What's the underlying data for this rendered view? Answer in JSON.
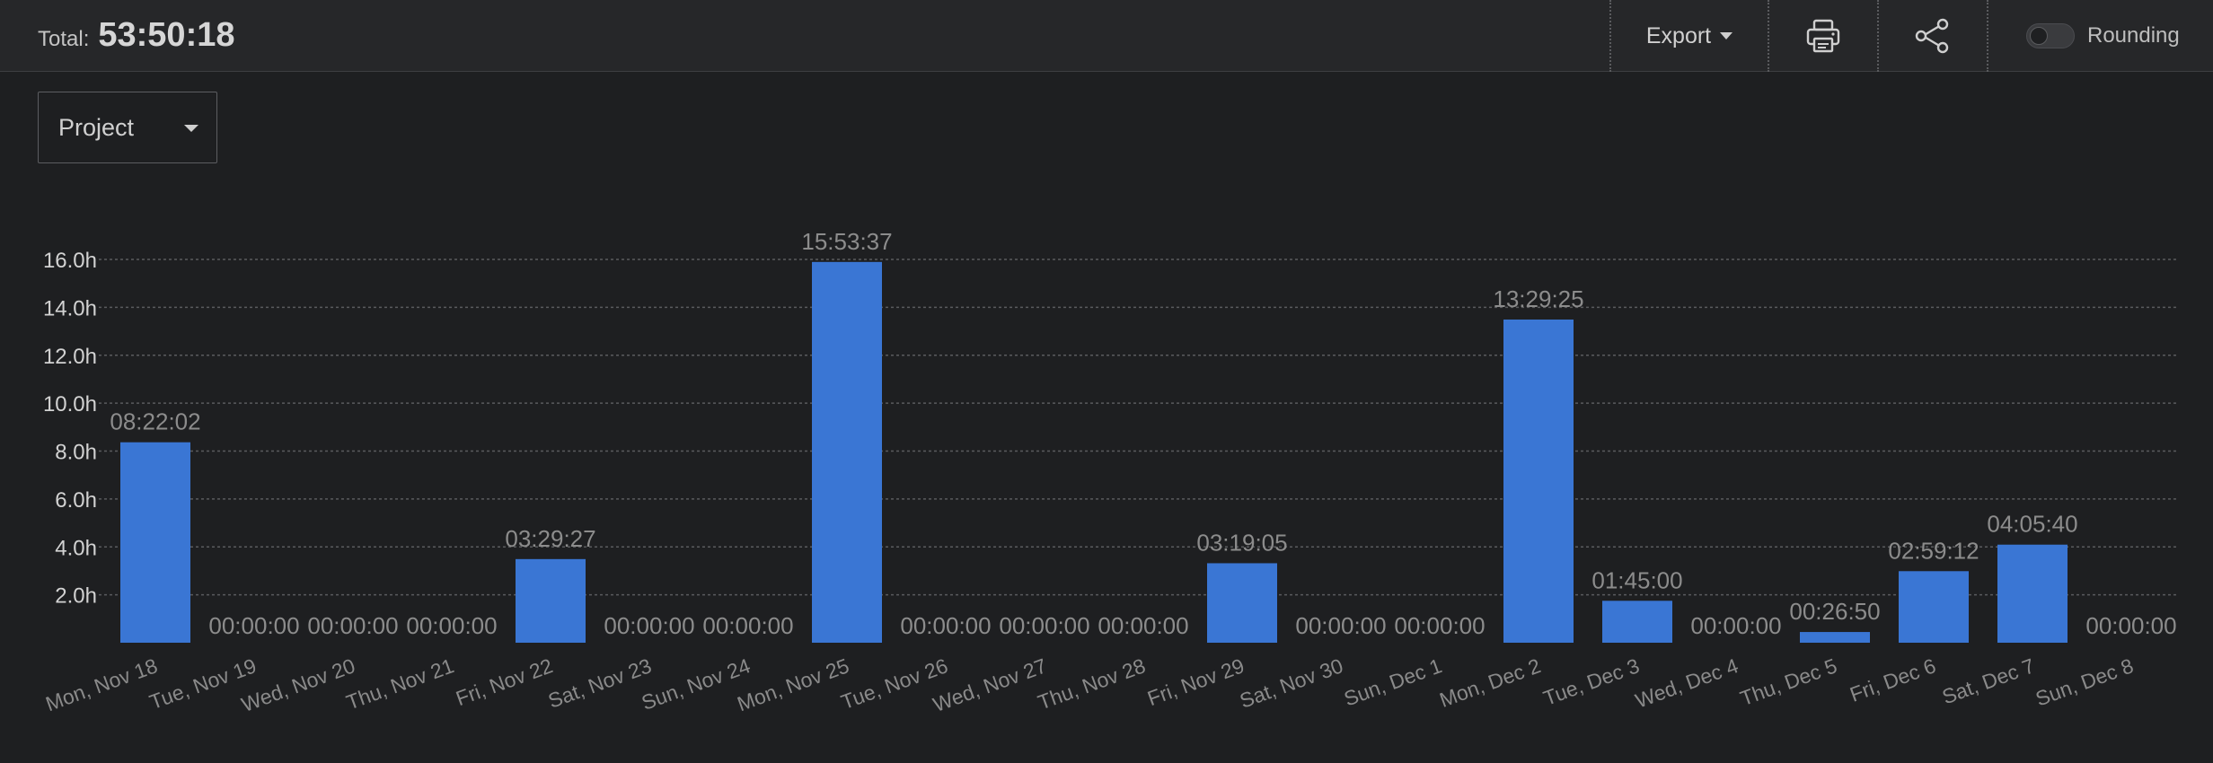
{
  "header": {
    "total_label": "Total:",
    "total_value": "53:50:18",
    "export_label": "Export",
    "rounding_label": "Rounding",
    "rounding_on": false
  },
  "filter": {
    "selected": "Project"
  },
  "colors": {
    "bar": "#3a76d4",
    "background": "#1e1f21",
    "grid": "#5a5b5e",
    "label": "#8c8c8c"
  },
  "icons": {
    "print": "printer-icon",
    "share": "share-icon"
  },
  "chart_data": {
    "type": "bar",
    "categories": [
      "Mon, Nov 18",
      "Tue, Nov 19",
      "Wed, Nov 20",
      "Thu, Nov 21",
      "Fri, Nov 22",
      "Sat, Nov 23",
      "Sun, Nov 24",
      "Mon, Nov 25",
      "Tue, Nov 26",
      "Wed, Nov 27",
      "Thu, Nov 28",
      "Fri, Nov 29",
      "Sat, Nov 30",
      "Sun, Dec 1",
      "Mon, Dec 2",
      "Tue, Dec 3",
      "Wed, Dec 4",
      "Thu, Dec 5",
      "Fri, Dec 6",
      "Sat, Dec 7",
      "Sun, Dec 8"
    ],
    "values": [
      8.367,
      0,
      0,
      0,
      3.491,
      0,
      0,
      15.894,
      0,
      0,
      0,
      3.318,
      0,
      0,
      13.49,
      1.75,
      0,
      0.447,
      2.987,
      4.094,
      0
    ],
    "data_labels": [
      "08:22:02",
      "00:00:00",
      "00:00:00",
      "00:00:00",
      "03:29:27",
      "00:00:00",
      "00:00:00",
      "15:53:37",
      "00:00:00",
      "00:00:00",
      "00:00:00",
      "03:19:05",
      "00:00:00",
      "00:00:00",
      "13:29:25",
      "01:45:00",
      "00:00:00",
      "00:26:50",
      "02:59:12",
      "04:05:40",
      "00:00:00"
    ],
    "yticks": [
      "2.0h",
      "4.0h",
      "6.0h",
      "8.0h",
      "10.0h",
      "12.0h",
      "14.0h",
      "16.0h"
    ],
    "ytick_values": [
      2,
      4,
      6,
      8,
      10,
      12,
      14,
      16
    ],
    "ylim": [
      0,
      16
    ],
    "grid": true
  }
}
